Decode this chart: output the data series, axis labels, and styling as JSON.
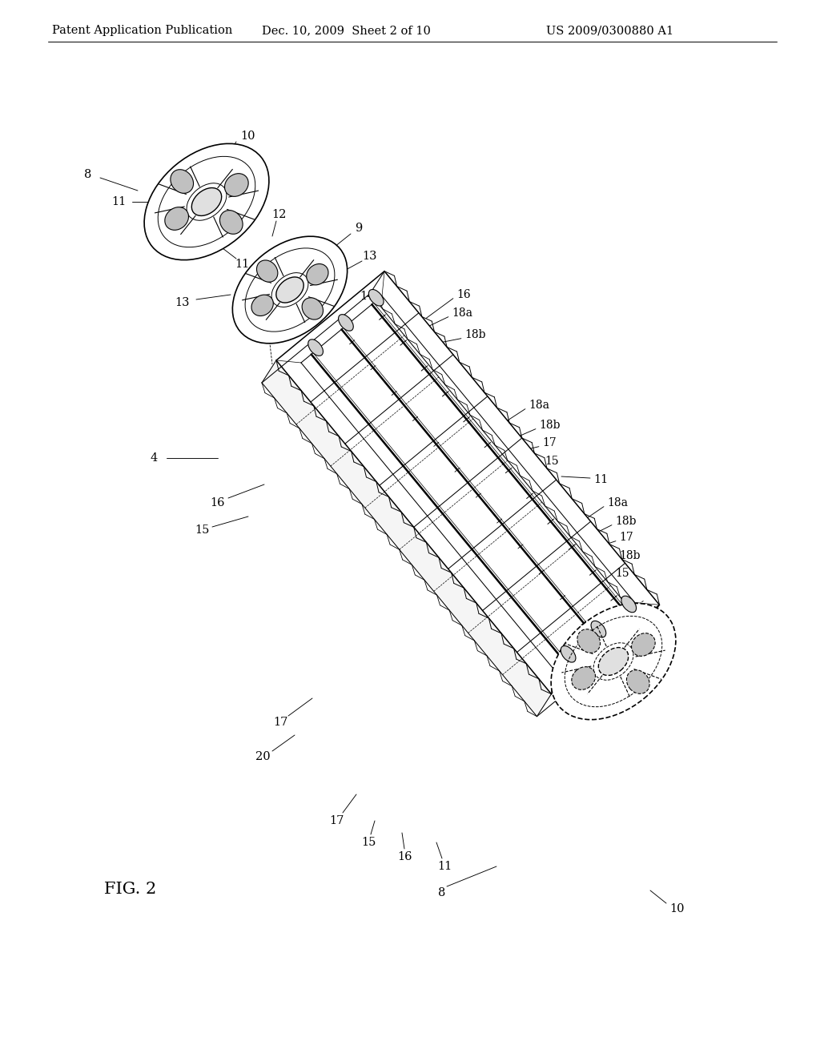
{
  "bg_color": "#ffffff",
  "line_color": "#000000",
  "header_left": "Patent Application Publication",
  "header_mid": "Dec. 10, 2009  Sheet 2 of 10",
  "header_right": "US 2009/0300880 A1",
  "fig_label": "FIG. 2",
  "header_fontsize": 10.5,
  "label_fontsize": 10.5,
  "fig_label_fontsize": 15,
  "lw_main": 1.1,
  "lw_med": 0.75,
  "lw_thin": 0.5
}
